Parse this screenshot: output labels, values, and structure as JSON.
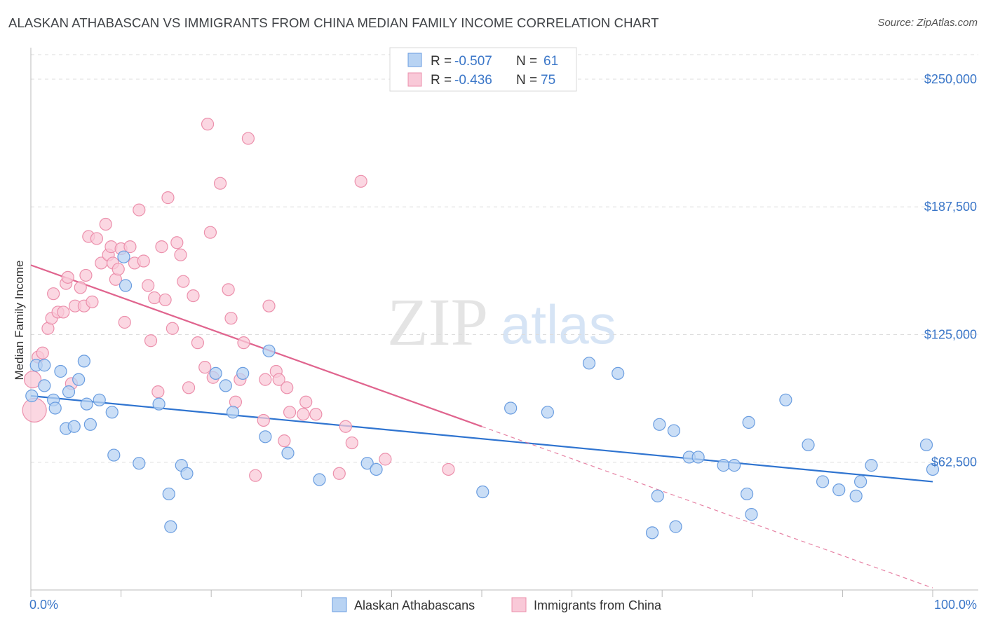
{
  "title": "ALASKAN ATHABASCAN VS IMMIGRANTS FROM CHINA MEDIAN FAMILY INCOME CORRELATION CHART",
  "source": "Source: ZipAtlas.com",
  "watermark": {
    "zip": "ZIP",
    "atlas": "atlas"
  },
  "colors": {
    "blue_fill": "#b8d3f3",
    "blue_stroke": "#6a9de0",
    "blue_line": "#2f74d0",
    "pink_fill": "#f9c9d8",
    "pink_stroke": "#ec90ac",
    "pink_line": "#e0648e",
    "tick_text": "#3a76c8",
    "grid": "#dddddd"
  },
  "legend": {
    "rows": [
      {
        "r_label": "R =",
        "r_value": "-0.507",
        "n_label": "N =",
        "n_value": "61"
      },
      {
        "r_label": "R =",
        "r_value": "-0.436",
        "n_label": "N =",
        "n_value": "75"
      }
    ]
  },
  "chart_data": {
    "type": "scatter",
    "xlabel": "",
    "ylabel": "Median Family Income",
    "xlim": [
      0,
      100
    ],
    "ylim": [
      0,
      262000
    ],
    "x_tick_labels": [
      "0.0%",
      "100.0%"
    ],
    "y_ticks": [
      62500,
      125000,
      187500,
      250000
    ],
    "y_tick_labels": [
      "$62,500",
      "$125,000",
      "$187,500",
      "$250,000"
    ],
    "series": [
      {
        "name": "Alaskan Athabascans",
        "color": "blue",
        "trend": {
          "x": [
            0,
            100
          ],
          "y": [
            95000,
            53000
          ],
          "dash_x": [
            100,
            100
          ]
        },
        "points": [
          [
            0.1,
            95000
          ],
          [
            0.6,
            110000
          ],
          [
            1.5,
            110000
          ],
          [
            1.5,
            100000
          ],
          [
            2.5,
            93000
          ],
          [
            2.7,
            89000
          ],
          [
            3.3,
            107000
          ],
          [
            3.9,
            79000
          ],
          [
            4.2,
            97000
          ],
          [
            4.8,
            80000
          ],
          [
            5.3,
            103000
          ],
          [
            5.9,
            112000
          ],
          [
            6.2,
            91000
          ],
          [
            6.6,
            81000
          ],
          [
            7.6,
            93000
          ],
          [
            9.0,
            87000
          ],
          [
            9.2,
            66000
          ],
          [
            10.3,
            163000
          ],
          [
            10.5,
            149000
          ],
          [
            12.0,
            62000
          ],
          [
            14.2,
            91000
          ],
          [
            15.3,
            47000
          ],
          [
            15.5,
            31000
          ],
          [
            16.7,
            61000
          ],
          [
            17.3,
            57000
          ],
          [
            20.5,
            106000
          ],
          [
            21.6,
            100000
          ],
          [
            22.4,
            87000
          ],
          [
            23.5,
            106000
          ],
          [
            26.0,
            75000
          ],
          [
            26.4,
            117000
          ],
          [
            28.5,
            67000
          ],
          [
            32.0,
            54000
          ],
          [
            37.3,
            62000
          ],
          [
            38.3,
            59000
          ],
          [
            50.1,
            48000
          ],
          [
            53.2,
            89000
          ],
          [
            57.3,
            87000
          ],
          [
            61.9,
            111000
          ],
          [
            65.1,
            106000
          ],
          [
            68.9,
            28000
          ],
          [
            69.5,
            46000
          ],
          [
            69.7,
            81000
          ],
          [
            71.3,
            78000
          ],
          [
            71.5,
            31000
          ],
          [
            73.0,
            65000
          ],
          [
            74.0,
            65000
          ],
          [
            76.8,
            61000
          ],
          [
            78.0,
            61000
          ],
          [
            79.4,
            47000
          ],
          [
            79.6,
            82000
          ],
          [
            79.9,
            37000
          ],
          [
            83.7,
            93000
          ],
          [
            86.2,
            71000
          ],
          [
            87.8,
            53000
          ],
          [
            89.6,
            49000
          ],
          [
            91.5,
            46000
          ],
          [
            92.0,
            53000
          ],
          [
            93.2,
            61000
          ],
          [
            99.3,
            71000
          ],
          [
            100.0,
            59000
          ]
        ]
      },
      {
        "name": "Immigrants from China",
        "color": "pink",
        "trend": {
          "x": [
            0,
            50
          ],
          "y": [
            159000,
            80000
          ],
          "dash_x": [
            50,
            100
          ]
        },
        "points": [
          [
            0.2,
            103000
          ],
          [
            0.4,
            88000
          ],
          [
            0.8,
            114000
          ],
          [
            1.3,
            116000
          ],
          [
            1.9,
            128000
          ],
          [
            2.3,
            133000
          ],
          [
            2.5,
            145000
          ],
          [
            3.0,
            136000
          ],
          [
            3.6,
            136000
          ],
          [
            3.9,
            150000
          ],
          [
            4.1,
            153000
          ],
          [
            4.5,
            101000
          ],
          [
            4.9,
            139000
          ],
          [
            5.5,
            148000
          ],
          [
            5.9,
            139000
          ],
          [
            6.1,
            154000
          ],
          [
            6.4,
            173000
          ],
          [
            6.8,
            141000
          ],
          [
            7.3,
            172000
          ],
          [
            7.8,
            160000
          ],
          [
            8.3,
            179000
          ],
          [
            8.6,
            164000
          ],
          [
            8.9,
            168000
          ],
          [
            9.1,
            160000
          ],
          [
            9.4,
            152000
          ],
          [
            9.7,
            157000
          ],
          [
            10.0,
            167000
          ],
          [
            10.4,
            131000
          ],
          [
            11.0,
            168000
          ],
          [
            11.5,
            160000
          ],
          [
            12.0,
            186000
          ],
          [
            12.5,
            161000
          ],
          [
            13.0,
            149000
          ],
          [
            13.3,
            122000
          ],
          [
            13.7,
            143000
          ],
          [
            14.1,
            97000
          ],
          [
            14.5,
            168000
          ],
          [
            14.9,
            142000
          ],
          [
            15.2,
            192000
          ],
          [
            15.7,
            128000
          ],
          [
            16.2,
            170000
          ],
          [
            16.6,
            164000
          ],
          [
            16.9,
            151000
          ],
          [
            17.5,
            99000
          ],
          [
            18.0,
            144000
          ],
          [
            18.5,
            121000
          ],
          [
            19.3,
            109000
          ],
          [
            19.6,
            228000
          ],
          [
            19.9,
            175000
          ],
          [
            20.2,
            104000
          ],
          [
            21.0,
            199000
          ],
          [
            21.9,
            147000
          ],
          [
            22.2,
            133000
          ],
          [
            22.7,
            92000
          ],
          [
            23.2,
            103000
          ],
          [
            23.6,
            121000
          ],
          [
            24.1,
            221000
          ],
          [
            24.9,
            56000
          ],
          [
            25.8,
            83000
          ],
          [
            26.0,
            103000
          ],
          [
            26.4,
            139000
          ],
          [
            27.2,
            107000
          ],
          [
            27.5,
            103000
          ],
          [
            28.1,
            73000
          ],
          [
            28.4,
            99000
          ],
          [
            28.7,
            87000
          ],
          [
            30.2,
            86000
          ],
          [
            30.5,
            92000
          ],
          [
            31.6,
            86000
          ],
          [
            34.2,
            57000
          ],
          [
            34.9,
            80000
          ],
          [
            35.6,
            72000
          ],
          [
            36.6,
            200000
          ],
          [
            39.3,
            64000
          ],
          [
            46.3,
            59000
          ]
        ]
      }
    ]
  }
}
